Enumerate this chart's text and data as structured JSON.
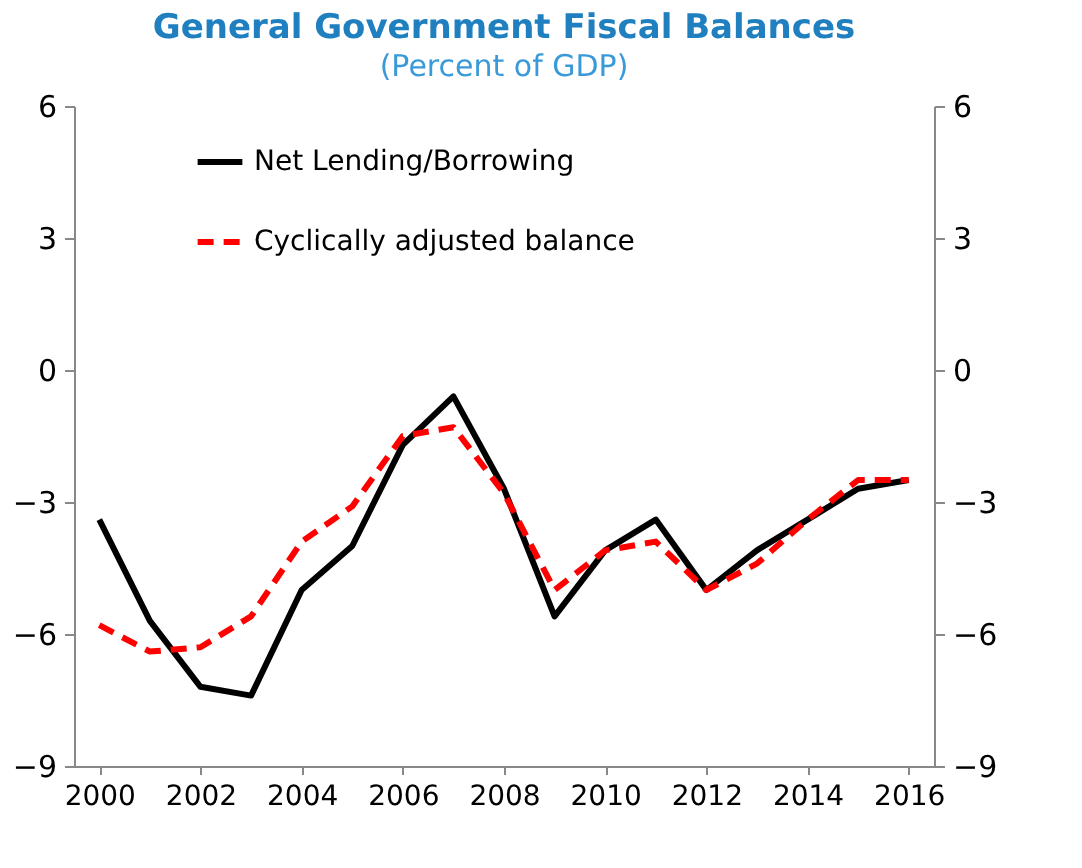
{
  "chart_data": {
    "type": "line",
    "title": "General Government Fiscal Balances",
    "subtitle": "(Percent of GDP)",
    "x": [
      2000,
      2001,
      2002,
      2003,
      2004,
      2005,
      2006,
      2007,
      2008,
      2009,
      2010,
      2011,
      2012,
      2013,
      2014,
      2015,
      2016
    ],
    "series": [
      {
        "name": "Net Lending/Borrowing",
        "color": "#000000",
        "line_style": "solid",
        "values": [
          -3.4,
          -5.7,
          -7.2,
          -7.4,
          -5.0,
          -4.0,
          -1.7,
          -0.6,
          -2.7,
          -5.6,
          -4.1,
          -3.4,
          -5.0,
          -4.1,
          -3.4,
          -2.7,
          -2.5
        ]
      },
      {
        "name": "Cyclically adjusted balance",
        "color": "#ff0000",
        "line_style": "dashed",
        "values": [
          -5.8,
          -6.4,
          -6.3,
          -5.6,
          -3.9,
          -3.1,
          -1.5,
          -1.3,
          -2.8,
          -5.0,
          -4.1,
          -3.9,
          -5.0,
          -4.4,
          -3.4,
          -2.5,
          -2.5
        ]
      }
    ],
    "xlim": [
      1999.5,
      2016.5
    ],
    "xticks": [
      2000,
      2002,
      2004,
      2006,
      2008,
      2010,
      2012,
      2014,
      2016
    ],
    "ylim": [
      -9,
      6
    ],
    "yticks": [
      -9,
      -6,
      -3,
      0,
      3,
      6
    ],
    "y2lim": [
      -9,
      6
    ],
    "y2ticks": [
      -9,
      -6,
      -3,
      0,
      3,
      6
    ],
    "grid": false,
    "legend": "top",
    "marker": "none"
  }
}
